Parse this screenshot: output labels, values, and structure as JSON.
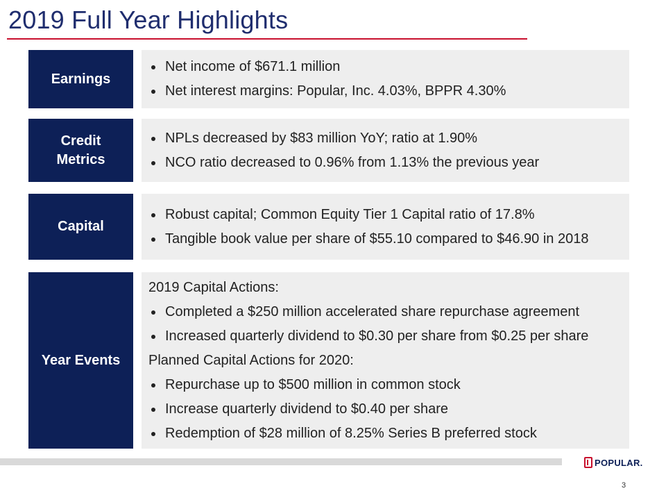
{
  "slide": {
    "title": "2019 Full Year Highlights",
    "page_number": "3",
    "logo_text": "POPULAR."
  },
  "colors": {
    "title": "#1f2d6e",
    "accent_rule": "#c8102e",
    "label_bg": "#0d2057",
    "content_bg": "#eeeeee",
    "footer_bar": "#d9d9d9"
  },
  "rows": [
    {
      "label": "Earnings",
      "lines": [
        {
          "type": "bullet",
          "text": "Net income of $671.1 million"
        },
        {
          "type": "bullet",
          "text": "Net interest margins: Popular, Inc. 4.03%, BPPR 4.30%"
        }
      ]
    },
    {
      "label": "Credit\nMetrics",
      "lines": [
        {
          "type": "bullet",
          "text": "NPLs decreased by $83 million YoY; ratio at 1.90%"
        },
        {
          "type": "bullet",
          "text": "NCO ratio decreased to 0.96% from 1.13% the previous year"
        }
      ]
    },
    {
      "label": "Capital",
      "lines": [
        {
          "type": "bullet",
          "text": "Robust capital; Common Equity Tier 1 Capital ratio of 17.8%"
        },
        {
          "type": "bullet",
          "text": "Tangible book value per share of $55.10 compared to $46.90 in 2018"
        }
      ]
    },
    {
      "label": "Year Events",
      "lines": [
        {
          "type": "heading",
          "text": "2019 Capital Actions:"
        },
        {
          "type": "bullet",
          "text": "Completed a $250 million accelerated share repurchase agreement"
        },
        {
          "type": "bullet",
          "text": "Increased quarterly dividend to $0.30 per share from $0.25 per share"
        },
        {
          "type": "heading",
          "text": "Planned Capital Actions for 2020:"
        },
        {
          "type": "bullet",
          "text": "Repurchase up to $500 million in common stock"
        },
        {
          "type": "bullet",
          "text": "Increase quarterly dividend to $0.40 per share"
        },
        {
          "type": "bullet",
          "text": "Redemption of $28 million of 8.25% Series B preferred stock"
        }
      ]
    }
  ]
}
